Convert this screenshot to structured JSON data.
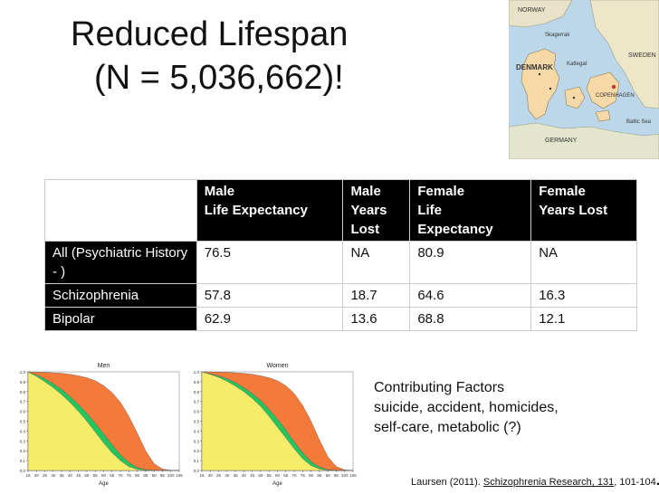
{
  "title": {
    "line1": "Reduced Lifespan",
    "line2": "(N = 5,036,662)!"
  },
  "map": {
    "labels": [
      "NORWAY",
      "SWEDEN",
      "DENMARK",
      "COPENHAGEN",
      "GERMANY",
      "Baltic Sea",
      "Skagerrak",
      "Kattegat"
    ]
  },
  "table": {
    "headers": [
      "",
      "Male\nLife Expectancy",
      "Male\nYears\nLost",
      "Female\nLife\nExpectancy",
      "Female\nYears Lost"
    ],
    "rows": [
      {
        "label": "All (Psychiatric History - )",
        "values": [
          "76.5",
          "NA",
          "80.9",
          "NA"
        ]
      },
      {
        "label": "Schizophrenia",
        "values": [
          "57.8",
          "18.7",
          "64.6",
          "16.3"
        ]
      },
      {
        "label": "Bipolar",
        "values": [
          "62.9",
          "13.6",
          "68.8",
          "12.1"
        ]
      }
    ]
  },
  "colors": {
    "male_header": "#00b7e6",
    "female_header": "#f03ab4",
    "row_all": "#ff6a4d",
    "row_schizophrenia": "#ffe94f",
    "row_bipolar": "#4cf08e",
    "curve_outer": "#f47a3a",
    "curve_band": "#22c55e",
    "curve_inner": "#f5ec6a"
  },
  "factors": {
    "heading": "Contributing Factors",
    "line1": "suicide, accident, homicides,",
    "line2": "self-care, metabolic (?)"
  },
  "citation": {
    "prefix": "Laursen (2011). ",
    "journal": "Schizophrenia Research, 131",
    "suffix": ", 101-104",
    "end": "."
  },
  "chart_data": [
    {
      "type": "area",
      "title": "Men",
      "xlabel": "Age",
      "x_ticks": [
        "15",
        "20",
        "25",
        "30",
        "35",
        "40",
        "45",
        "50",
        "55",
        "60",
        "65",
        "70",
        "75",
        "80",
        "85",
        "90",
        "95",
        "100",
        "105"
      ],
      "y_ticks": [
        "0.0",
        "0.1",
        "0.2",
        "0.3",
        "0.4",
        "0.5",
        "0.6",
        "0.7",
        "0.8",
        "0.9",
        "1.0"
      ],
      "xlim": [
        15,
        105
      ],
      "ylim": [
        0,
        1
      ],
      "x": [
        15,
        20,
        25,
        30,
        35,
        40,
        45,
        50,
        55,
        60,
        65,
        70,
        75,
        80,
        85,
        90,
        95,
        100,
        105
      ],
      "series": [
        {
          "values": [
            1.0,
            0.998,
            0.995,
            0.99,
            0.985,
            0.975,
            0.96,
            0.94,
            0.91,
            0.86,
            0.79,
            0.69,
            0.55,
            0.38,
            0.2,
            0.07,
            0.015,
            0.002,
            0.0
          ]
        },
        {
          "values": [
            1.0,
            0.97,
            0.93,
            0.88,
            0.82,
            0.75,
            0.67,
            0.58,
            0.48,
            0.37,
            0.26,
            0.16,
            0.08,
            0.03,
            0.008,
            0.001,
            0.0,
            0.0,
            0.0
          ]
        },
        {
          "values": [
            1.0,
            0.955,
            0.9,
            0.84,
            0.77,
            0.69,
            0.6,
            0.5,
            0.39,
            0.28,
            0.18,
            0.1,
            0.04,
            0.012,
            0.002,
            0.0,
            0.0,
            0.0,
            0.0
          ]
        }
      ]
    },
    {
      "type": "area",
      "title": "Women",
      "xlabel": "Age",
      "x_ticks": [
        "15",
        "20",
        "25",
        "30",
        "35",
        "40",
        "45",
        "50",
        "55",
        "60",
        "65",
        "70",
        "75",
        "80",
        "85",
        "90",
        "95",
        "100",
        "105"
      ],
      "y_ticks": [
        "0.0",
        "0.1",
        "0.2",
        "0.3",
        "0.4",
        "0.5",
        "0.6",
        "0.7",
        "0.8",
        "0.9",
        "1.0"
      ],
      "xlim": [
        15,
        105
      ],
      "ylim": [
        0,
        1
      ],
      "x": [
        15,
        20,
        25,
        30,
        35,
        40,
        45,
        50,
        55,
        60,
        65,
        70,
        75,
        80,
        85,
        90,
        95,
        100,
        105
      ],
      "series": [
        {
          "values": [
            1.0,
            0.999,
            0.998,
            0.995,
            0.99,
            0.985,
            0.975,
            0.96,
            0.94,
            0.91,
            0.86,
            0.78,
            0.66,
            0.5,
            0.31,
            0.14,
            0.04,
            0.006,
            0.0
          ]
        },
        {
          "values": [
            1.0,
            0.98,
            0.96,
            0.93,
            0.89,
            0.84,
            0.78,
            0.71,
            0.62,
            0.52,
            0.41,
            0.29,
            0.18,
            0.09,
            0.035,
            0.008,
            0.001,
            0.0,
            0.0
          ]
        },
        {
          "values": [
            1.0,
            0.975,
            0.945,
            0.905,
            0.855,
            0.8,
            0.73,
            0.65,
            0.55,
            0.44,
            0.33,
            0.22,
            0.12,
            0.05,
            0.015,
            0.003,
            0.0,
            0.0,
            0.0
          ]
        }
      ]
    }
  ]
}
